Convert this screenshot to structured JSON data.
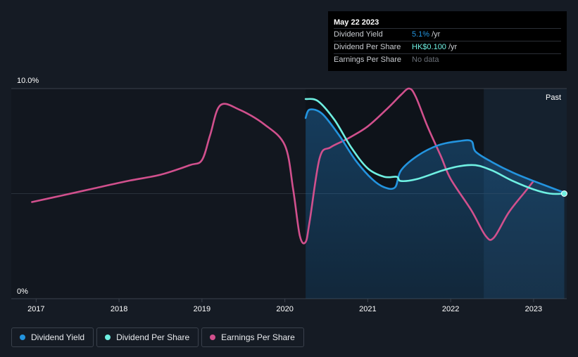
{
  "chart_data": {
    "type": "line",
    "y_axis": {
      "top_label": "10.0%",
      "bottom_label": "0%",
      "ylim": [
        0,
        10
      ]
    },
    "x_axis": {
      "ticks": [
        "2017",
        "2018",
        "2019",
        "2020",
        "2021",
        "2022",
        "2023"
      ],
      "xlim": [
        2016.7,
        2023.4
      ]
    },
    "past_label": "Past",
    "forecast_region_start": 2022.4,
    "series": [
      {
        "name": "Dividend Yield",
        "color": "#2394df",
        "filled": true,
        "points": [
          [
            2020.25,
            8.6
          ],
          [
            2020.3,
            9.0
          ],
          [
            2020.45,
            8.8
          ],
          [
            2020.65,
            7.8
          ],
          [
            2020.85,
            6.6
          ],
          [
            2021.05,
            5.7
          ],
          [
            2021.2,
            5.3
          ],
          [
            2021.33,
            5.3
          ],
          [
            2021.4,
            6.1
          ],
          [
            2021.6,
            6.8
          ],
          [
            2021.85,
            7.3
          ],
          [
            2022.1,
            7.5
          ],
          [
            2022.25,
            7.5
          ],
          [
            2022.3,
            7.0
          ],
          [
            2022.5,
            6.5
          ],
          [
            2022.75,
            6.0
          ],
          [
            2023.0,
            5.6
          ],
          [
            2023.2,
            5.3
          ],
          [
            2023.37,
            5.05
          ]
        ]
      },
      {
        "name": "Dividend Per Share",
        "color": "#6ff0e2",
        "filled": false,
        "points": [
          [
            2020.25,
            9.5
          ],
          [
            2020.4,
            9.4
          ],
          [
            2020.6,
            8.5
          ],
          [
            2020.8,
            7.2
          ],
          [
            2021.0,
            6.2
          ],
          [
            2021.2,
            5.8
          ],
          [
            2021.35,
            5.8
          ],
          [
            2021.4,
            5.6
          ],
          [
            2021.6,
            5.7
          ],
          [
            2021.9,
            6.1
          ],
          [
            2022.1,
            6.3
          ],
          [
            2022.3,
            6.35
          ],
          [
            2022.5,
            6.1
          ],
          [
            2022.75,
            5.6
          ],
          [
            2023.0,
            5.2
          ],
          [
            2023.2,
            5.0
          ],
          [
            2023.37,
            5.0
          ]
        ]
      },
      {
        "name": "Earnings Per Share",
        "color": "#d1508d",
        "filled": false,
        "points": [
          [
            2016.95,
            4.6
          ],
          [
            2017.3,
            4.9
          ],
          [
            2017.7,
            5.25
          ],
          [
            2018.1,
            5.6
          ],
          [
            2018.5,
            5.9
          ],
          [
            2018.85,
            6.35
          ],
          [
            2019.0,
            6.6
          ],
          [
            2019.1,
            7.8
          ],
          [
            2019.22,
            9.2
          ],
          [
            2019.45,
            9.0
          ],
          [
            2019.75,
            8.3
          ],
          [
            2020.0,
            7.3
          ],
          [
            2020.1,
            5.2
          ],
          [
            2020.18,
            3.0
          ],
          [
            2020.25,
            2.7
          ],
          [
            2020.3,
            3.7
          ],
          [
            2020.42,
            6.7
          ],
          [
            2020.55,
            7.2
          ],
          [
            2020.75,
            7.6
          ],
          [
            2021.0,
            8.2
          ],
          [
            2021.25,
            9.1
          ],
          [
            2021.4,
            9.7
          ],
          [
            2021.5,
            10.0
          ],
          [
            2021.58,
            9.6
          ],
          [
            2021.72,
            8.2
          ],
          [
            2021.88,
            6.8
          ],
          [
            2022.0,
            5.7
          ],
          [
            2022.25,
            4.2
          ],
          [
            2022.42,
            3.0
          ],
          [
            2022.52,
            2.9
          ],
          [
            2022.7,
            4.1
          ],
          [
            2022.9,
            5.1
          ],
          [
            2023.0,
            5.6
          ]
        ]
      }
    ]
  },
  "tooltip": {
    "date": "May 22 2023",
    "rows": [
      {
        "name": "Dividend Yield",
        "value": "5.1%",
        "unit": "/yr"
      },
      {
        "name": "Dividend Per Share",
        "value": "HK$0.100",
        "unit": "/yr"
      },
      {
        "name": "Earnings Per Share",
        "value": "No data"
      }
    ]
  },
  "legend": [
    {
      "label": "Dividend Yield",
      "color": "#2394df"
    },
    {
      "label": "Dividend Per Share",
      "color": "#6ff0e2"
    },
    {
      "label": "Earnings Per Share",
      "color": "#d1508d"
    }
  ]
}
